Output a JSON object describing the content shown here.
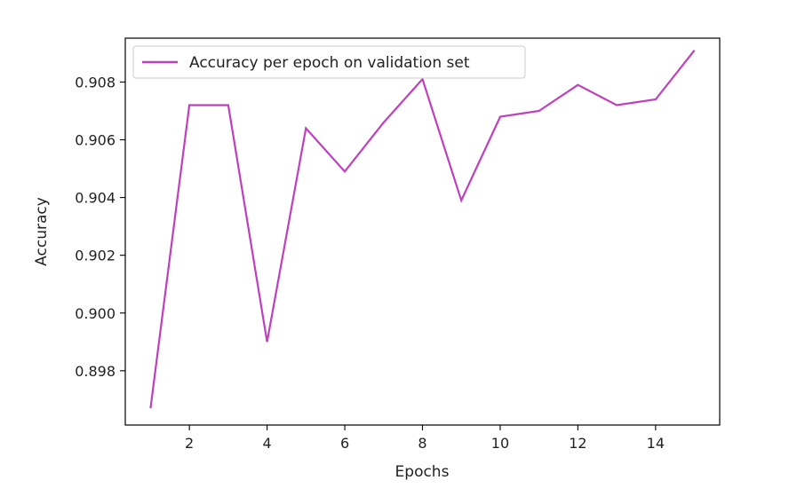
{
  "chart_data": {
    "type": "line",
    "xlabel": "Epochs",
    "ylabel": "Accuracy",
    "xlim": [
      0.35,
      15.65
    ],
    "ylim": [
      0.89612,
      0.90952
    ],
    "x_ticks": [
      2,
      4,
      6,
      8,
      10,
      12,
      14
    ],
    "y_ticks": [
      0.898,
      0.9,
      0.902,
      0.904,
      0.906,
      0.908
    ],
    "y_tick_labels": [
      "0.898",
      "0.900",
      "0.902",
      "0.904",
      "0.906",
      "0.908"
    ],
    "x_tick_labels": [
      "2",
      "4",
      "6",
      "8",
      "10",
      "12",
      "14"
    ],
    "legend_position": "top-left",
    "grid": false,
    "series": [
      {
        "name": "Accuracy per epoch on validation set",
        "color": "#bf3fbf",
        "x": [
          1,
          2,
          3,
          4,
          5,
          6,
          7,
          8,
          9,
          10,
          11,
          12,
          13,
          14,
          15
        ],
        "y": [
          0.8967,
          0.9072,
          0.9072,
          0.899,
          0.9064,
          0.9049,
          0.9066,
          0.9081,
          0.9039,
          0.9068,
          0.907,
          0.9079,
          0.9072,
          0.9074,
          0.9091
        ]
      }
    ]
  }
}
